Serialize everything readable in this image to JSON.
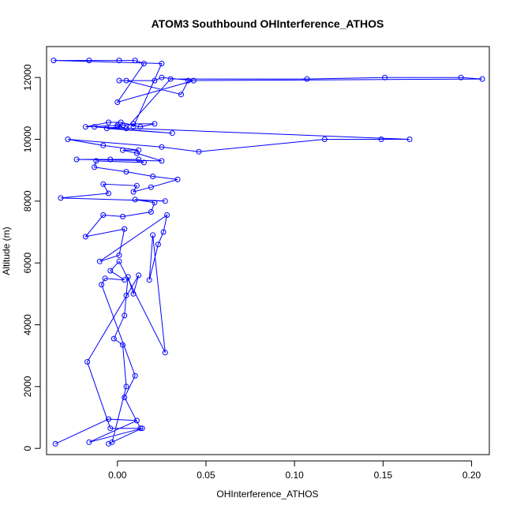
{
  "chart_data": {
    "type": "line",
    "title": "ATOM3 Southbound OHInterference_ATHOS",
    "xlabel": "OHInterference_ATHOS",
    "ylabel": "Altitude (m)",
    "xlim": [
      -0.04,
      0.21
    ],
    "ylim": [
      -200,
      13000
    ],
    "xticks": [
      0.0,
      0.05,
      0.1,
      0.15,
      0.2
    ],
    "xtick_labels": [
      "0.00",
      "0.05",
      "0.10",
      "0.15",
      "0.20"
    ],
    "yticks": [
      0,
      2000,
      4000,
      6000,
      8000,
      10000,
      12000
    ],
    "ytick_labels": [
      "0",
      "2000",
      "4000",
      "6000",
      "8000",
      "10000",
      "12000"
    ],
    "grid": false,
    "series": [
      {
        "color": "#0000ff",
        "marker": "open-circle",
        "points": [
          [
            -0.035,
            150
          ],
          [
            -0.005,
            950
          ],
          [
            0.011,
            900
          ],
          [
            -0.016,
            200
          ],
          [
            0.014,
            650
          ],
          [
            -0.005,
            150
          ],
          [
            -0.003,
            200
          ],
          [
            0.005,
            2000
          ],
          [
            0.003,
            3350
          ],
          [
            -0.002,
            3550
          ],
          [
            0.004,
            4300
          ],
          [
            0.005,
            4950
          ],
          [
            0.006,
            5550
          ],
          [
            0.009,
            5000
          ],
          [
            0.012,
            5600
          ],
          [
            -0.017,
            2800
          ],
          [
            -0.004,
            650
          ],
          [
            0.013,
            650
          ],
          [
            0.004,
            1650
          ],
          [
            0.01,
            2350
          ],
          [
            -0.009,
            5300
          ],
          [
            -0.007,
            5500
          ],
          [
            0.004,
            5450
          ],
          [
            -0.004,
            5750
          ],
          [
            0.001,
            6050
          ],
          [
            0.027,
            3100
          ],
          [
            0.02,
            6900
          ],
          [
            0.018,
            5450
          ],
          [
            0.023,
            6600
          ],
          [
            0.026,
            7000
          ],
          [
            0.028,
            7550
          ],
          [
            -0.01,
            6050
          ],
          [
            0.001,
            6250
          ],
          [
            0.004,
            7100
          ],
          [
            -0.018,
            6850
          ],
          [
            -0.008,
            7550
          ],
          [
            0.003,
            7500
          ],
          [
            0.019,
            7650
          ],
          [
            0.021,
            7950
          ],
          [
            0.01,
            8050
          ],
          [
            0.027,
            8000
          ],
          [
            -0.032,
            8100
          ],
          [
            -0.005,
            8250
          ],
          [
            -0.008,
            8550
          ],
          [
            0.011,
            8500
          ],
          [
            0.009,
            8300
          ],
          [
            0.019,
            8450
          ],
          [
            0.034,
            8700
          ],
          [
            0.02,
            8800
          ],
          [
            0.005,
            8950
          ],
          [
            -0.013,
            9100
          ],
          [
            -0.012,
            9300
          ],
          [
            0.015,
            9250
          ],
          [
            0.012,
            9350
          ],
          [
            -0.004,
            9350
          ],
          [
            -0.023,
            9350
          ],
          [
            0.025,
            9300
          ],
          [
            0.011,
            9550
          ],
          [
            0.003,
            9650
          ],
          [
            0.012,
            9650
          ],
          [
            -0.008,
            9800
          ],
          [
            -0.028,
            10000
          ],
          [
            0.025,
            9750
          ],
          [
            0.046,
            9600
          ],
          [
            0.117,
            10000
          ],
          [
            0.149,
            10000
          ],
          [
            0.165,
            10000
          ],
          [
            -0.013,
            10400
          ],
          [
            0.031,
            10200
          ],
          [
            -0.006,
            10350
          ],
          [
            0.0,
            10400
          ],
          [
            0.003,
            10450
          ],
          [
            0.009,
            10500
          ],
          [
            0.021,
            10500
          ],
          [
            0.013,
            10400
          ],
          [
            0.002,
            10550
          ],
          [
            -0.005,
            10550
          ],
          [
            -0.018,
            10400
          ],
          [
            0.0,
            10450
          ],
          [
            0.005,
            10350
          ],
          [
            0.03,
            11950
          ],
          [
            0.107,
            11950
          ],
          [
            0.151,
            12000
          ],
          [
            0.194,
            12000
          ],
          [
            0.206,
            11950
          ],
          [
            0.04,
            11900
          ],
          [
            0.036,
            11450
          ],
          [
            0.005,
            11900
          ],
          [
            0.001,
            11900
          ],
          [
            0.021,
            11900
          ],
          [
            0.025,
            12000
          ],
          [
            0.043,
            11900
          ],
          [
            0.0,
            11200
          ],
          [
            0.015,
            12450
          ],
          [
            0.01,
            12550
          ],
          [
            0.001,
            12550
          ],
          [
            -0.016,
            12550
          ],
          [
            -0.036,
            12550
          ],
          [
            0.025,
            12450
          ],
          [
            0.009,
            10400
          ]
        ]
      }
    ]
  }
}
